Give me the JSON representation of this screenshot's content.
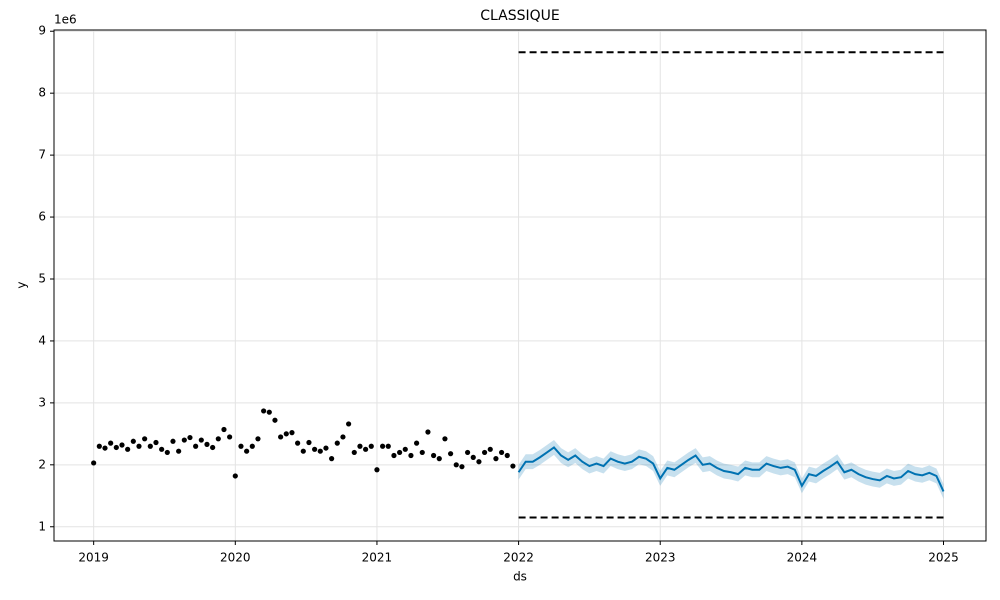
{
  "chart_data": {
    "type": "forecast",
    "title": "CLASSIQUE",
    "x_label": "ds",
    "y_label": "y",
    "y_offset_label": "1e6",
    "xlim": [
      2018.72,
      2025.3
    ],
    "ylim": [
      0.77,
      9.02
    ],
    "xticks": [
      2019,
      2020,
      2021,
      2022,
      2023,
      2024,
      2025
    ],
    "yticks": [
      1,
      2,
      3,
      4,
      5,
      6,
      7,
      8,
      9
    ],
    "grid": true,
    "history": {
      "color": "#000000",
      "x": [
        2019,
        2019.04,
        2019.08,
        2019.12,
        2019.16,
        2019.2,
        2019.24,
        2019.28,
        2019.32,
        2019.36,
        2019.4,
        2019.44,
        2019.48,
        2019.52,
        2019.56,
        2019.6,
        2019.64,
        2019.68,
        2019.72,
        2019.76,
        2019.8,
        2019.84,
        2019.88,
        2019.92,
        2019.96,
        2020,
        2020.04,
        2020.08,
        2020.12,
        2020.16,
        2020.2,
        2020.24,
        2020.28,
        2020.32,
        2020.36,
        2020.4,
        2020.44,
        2020.48,
        2020.52,
        2020.56,
        2020.6,
        2020.64,
        2020.68,
        2020.72,
        2020.76,
        2020.8,
        2020.84,
        2020.88,
        2020.92,
        2020.96,
        2021,
        2021.04,
        2021.08,
        2021.12,
        2021.16,
        2021.2,
        2021.24,
        2021.28,
        2021.32,
        2021.36,
        2021.4,
        2021.44,
        2021.48,
        2021.52,
        2021.56,
        2021.6,
        2021.64,
        2021.68,
        2021.72,
        2021.76,
        2021.8,
        2021.84,
        2021.88,
        2021.92,
        2021.96
      ],
      "values": [
        2.03,
        2.3,
        2.27,
        2.35,
        2.28,
        2.32,
        2.25,
        2.38,
        2.3,
        2.42,
        2.3,
        2.36,
        2.25,
        2.2,
        2.38,
        2.22,
        2.4,
        2.44,
        2.3,
        2.4,
        2.33,
        2.28,
        2.42,
        2.57,
        2.45,
        1.82,
        2.3,
        2.22,
        2.3,
        2.42,
        2.87,
        2.85,
        2.72,
        2.45,
        2.5,
        2.52,
        2.35,
        2.22,
        2.36,
        2.25,
        2.22,
        2.27,
        2.1,
        2.35,
        2.45,
        2.66,
        2.2,
        2.3,
        2.25,
        2.3,
        1.92,
        2.3,
        2.3,
        2.15,
        2.2,
        2.25,
        2.15,
        2.35,
        2.2,
        2.53,
        2.15,
        2.1,
        2.42,
        2.18,
        2.0,
        1.97,
        2.2,
        2.12,
        2.05,
        2.2,
        2.25,
        2.1,
        2.2,
        2.15,
        1.98
      ]
    },
    "forecast": {
      "color": "#0072B2",
      "x": [
        2022,
        2022.05,
        2022.1,
        2022.15,
        2022.2,
        2022.25,
        2022.3,
        2022.35,
        2022.4,
        2022.45,
        2022.5,
        2022.55,
        2022.6,
        2022.65,
        2022.7,
        2022.75,
        2022.8,
        2022.85,
        2022.9,
        2022.95,
        2023,
        2023.05,
        2023.1,
        2023.15,
        2023.2,
        2023.25,
        2023.3,
        2023.35,
        2023.4,
        2023.45,
        2023.5,
        2023.55,
        2023.6,
        2023.65,
        2023.7,
        2023.75,
        2023.8,
        2023.85,
        2023.9,
        2023.95,
        2024,
        2024.05,
        2024.1,
        2024.15,
        2024.2,
        2024.25,
        2024.3,
        2024.35,
        2024.4,
        2024.45,
        2024.5,
        2024.55,
        2024.6,
        2024.65,
        2024.7,
        2024.75,
        2024.8,
        2024.85,
        2024.9,
        2024.95,
        2025
      ],
      "values": [
        1.88,
        2.05,
        2.05,
        2.12,
        2.2,
        2.28,
        2.15,
        2.08,
        2.15,
        2.05,
        1.98,
        2.02,
        1.98,
        2.1,
        2.05,
        2.02,
        2.05,
        2.13,
        2.1,
        2.02,
        1.78,
        1.95,
        1.92,
        2.0,
        2.08,
        2.15,
        2.0,
        2.02,
        1.95,
        1.9,
        1.88,
        1.85,
        1.95,
        1.92,
        1.92,
        2.02,
        1.98,
        1.95,
        1.97,
        1.92,
        1.66,
        1.85,
        1.82,
        1.9,
        1.97,
        2.05,
        1.88,
        1.92,
        1.85,
        1.8,
        1.77,
        1.75,
        1.82,
        1.78,
        1.8,
        1.9,
        1.85,
        1.83,
        1.87,
        1.82,
        1.57
      ],
      "lower": [
        1.76,
        1.93,
        1.93,
        2.0,
        2.08,
        2.16,
        2.03,
        1.96,
        2.03,
        1.93,
        1.86,
        1.9,
        1.86,
        1.98,
        1.93,
        1.9,
        1.93,
        2.01,
        1.98,
        1.9,
        1.66,
        1.83,
        1.8,
        1.88,
        1.96,
        2.03,
        1.88,
        1.9,
        1.83,
        1.78,
        1.76,
        1.73,
        1.83,
        1.8,
        1.8,
        1.9,
        1.86,
        1.83,
        1.85,
        1.8,
        1.54,
        1.73,
        1.7,
        1.78,
        1.85,
        1.93,
        1.76,
        1.8,
        1.73,
        1.68,
        1.65,
        1.63,
        1.7,
        1.66,
        1.68,
        1.78,
        1.73,
        1.71,
        1.75,
        1.7,
        1.45
      ],
      "upper": [
        2.0,
        2.17,
        2.17,
        2.24,
        2.32,
        2.4,
        2.27,
        2.2,
        2.27,
        2.17,
        2.1,
        2.14,
        2.1,
        2.22,
        2.17,
        2.14,
        2.17,
        2.25,
        2.22,
        2.14,
        1.9,
        2.07,
        2.04,
        2.12,
        2.2,
        2.27,
        2.12,
        2.14,
        2.07,
        2.02,
        2.0,
        1.97,
        2.07,
        2.04,
        2.04,
        2.14,
        2.1,
        2.07,
        2.09,
        2.04,
        1.78,
        1.97,
        1.94,
        2.02,
        2.09,
        2.17,
        2.0,
        2.04,
        1.97,
        1.92,
        1.89,
        1.87,
        1.94,
        1.9,
        1.92,
        2.02,
        1.97,
        1.95,
        1.99,
        1.94,
        1.69
      ]
    },
    "cap": {
      "color": "#000000",
      "x": [
        2022,
        2025
      ],
      "values": [
        8.66,
        8.66
      ]
    },
    "floor": {
      "color": "#000000",
      "x": [
        2022,
        2025
      ],
      "values": [
        1.15,
        1.15
      ]
    }
  }
}
